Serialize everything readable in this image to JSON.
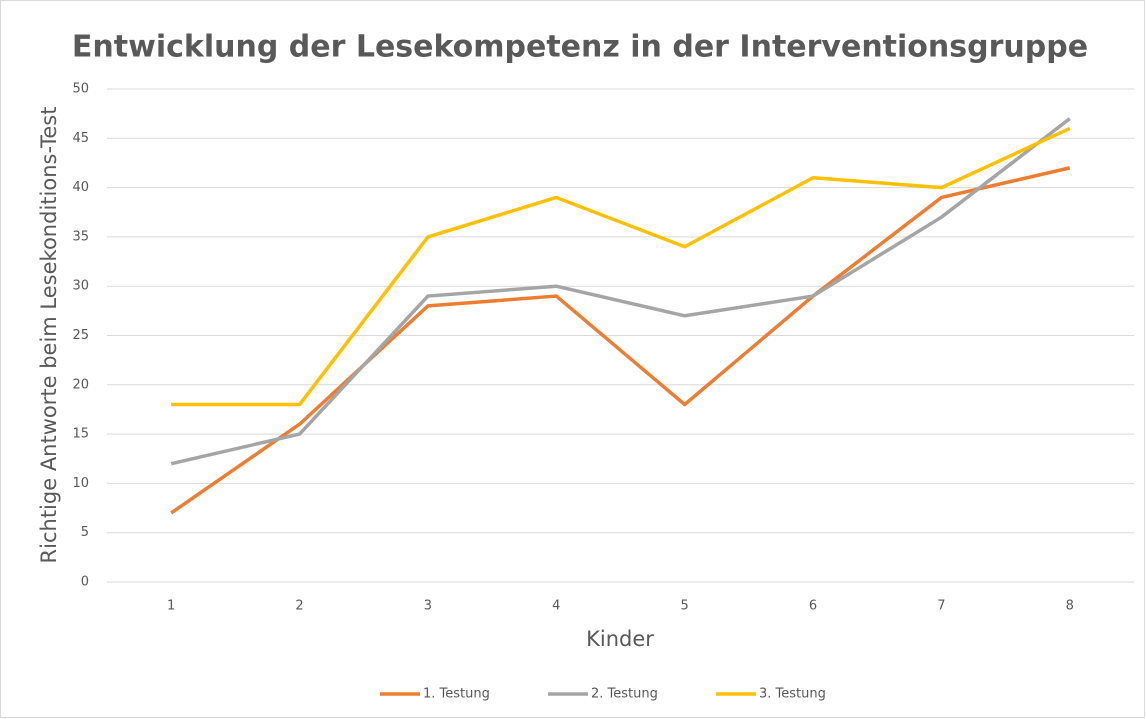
{
  "chart_data": {
    "type": "line",
    "title": "Entwicklung der Lesekompetenz in der Interventionsgruppe",
    "x_label": "Kinder",
    "y_label": "Richtige Antworte beim Lesekonditions-Test",
    "categories": [
      "1",
      "2",
      "3",
      "4",
      "5",
      "6",
      "7",
      "8"
    ],
    "series": [
      {
        "name": "1. Testung",
        "color": "#ED7D31",
        "values": [
          7,
          16,
          28,
          29,
          18,
          29,
          39,
          42
        ]
      },
      {
        "name": "2. Testung",
        "color": "#A5A5A5",
        "values": [
          12,
          15,
          29,
          30,
          27,
          29,
          37,
          47
        ]
      },
      {
        "name": "3. Testung",
        "color": "#FFC000",
        "values": [
          18,
          18,
          35,
          39,
          34,
          41,
          40,
          46
        ]
      }
    ],
    "ylim": [
      0,
      50
    ],
    "yticks": [
      0,
      5,
      10,
      15,
      20,
      25,
      30,
      35,
      40,
      45,
      50
    ],
    "grid": true,
    "legend": "bottom"
  }
}
